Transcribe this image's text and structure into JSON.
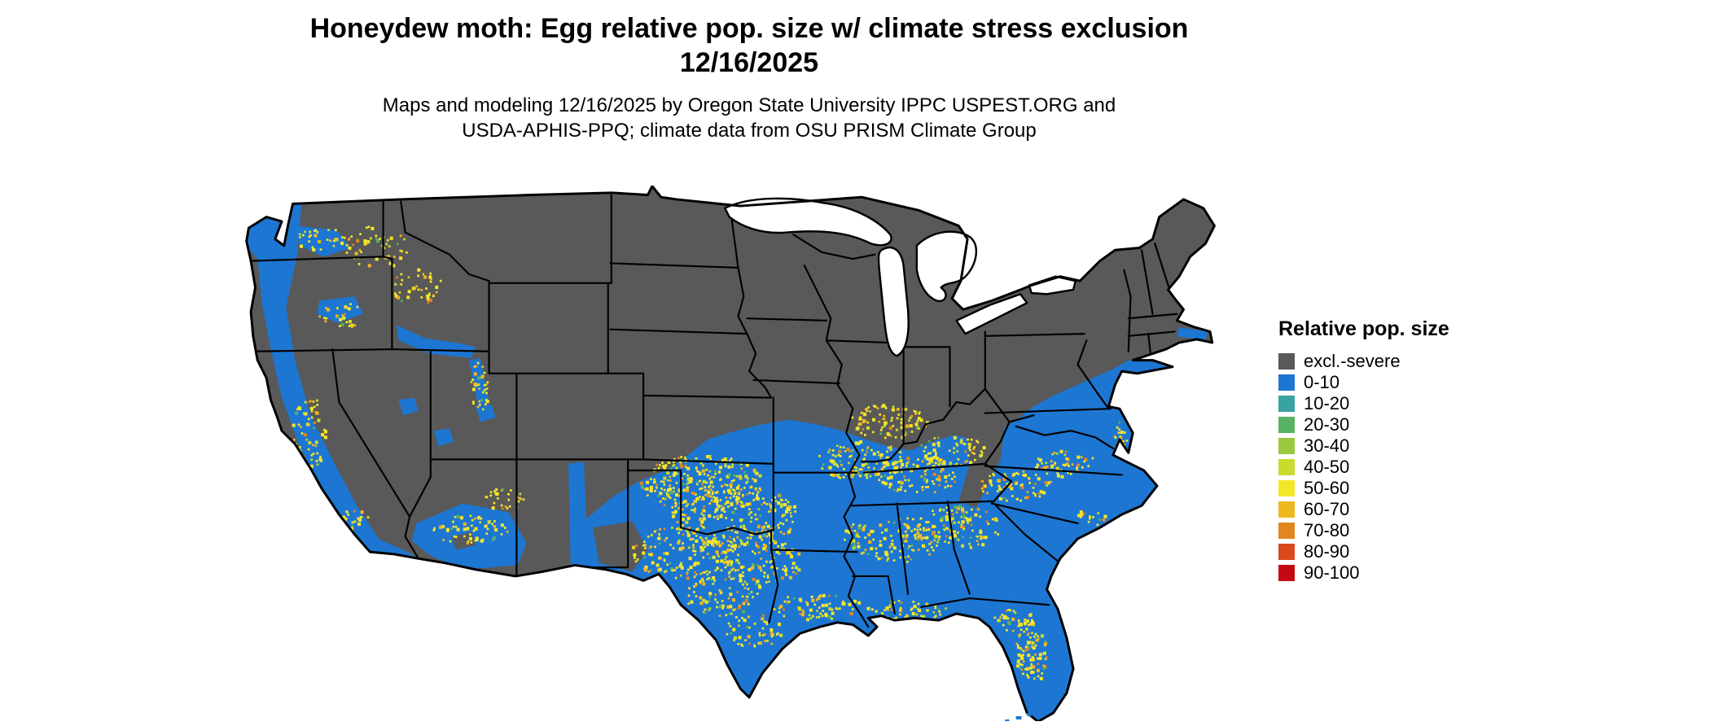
{
  "header": {
    "title_line1": "Honeydew moth: Egg relative pop. size w/ climate stress exclusion",
    "title_line2": "12/16/2025",
    "subtitle_line1": "Maps and modeling 12/16/2025 by Oregon State University IPPC USPEST.ORG and",
    "subtitle_line2": "USDA-APHIS-PPQ; climate data from OSU PRISM Climate Group"
  },
  "legend": {
    "title": "Relative pop. size",
    "items": [
      {
        "label": "excl.-severe",
        "color": "#595959"
      },
      {
        "label": "0-10",
        "color": "#1d76d2"
      },
      {
        "label": "10-20",
        "color": "#39a3a3"
      },
      {
        "label": "20-30",
        "color": "#58b263"
      },
      {
        "label": "30-40",
        "color": "#9ac93e"
      },
      {
        "label": "40-50",
        "color": "#c9dc2e"
      },
      {
        "label": "50-60",
        "color": "#f5e62a"
      },
      {
        "label": "60-70",
        "color": "#f0b820"
      },
      {
        "label": "70-80",
        "color": "#e2871f"
      },
      {
        "label": "80-90",
        "color": "#d9491e"
      },
      {
        "label": "90-100",
        "color": "#c40a11"
      }
    ]
  },
  "map": {
    "excluded_color": "#595959",
    "population_low_color": "#1d76d2",
    "hotspot_colors": [
      "#f5e62a",
      "#f0b820",
      "#c9dc2e",
      "#e2871f",
      "#58b263"
    ],
    "border_color": "#000000",
    "water_color": "#ffffff"
  }
}
